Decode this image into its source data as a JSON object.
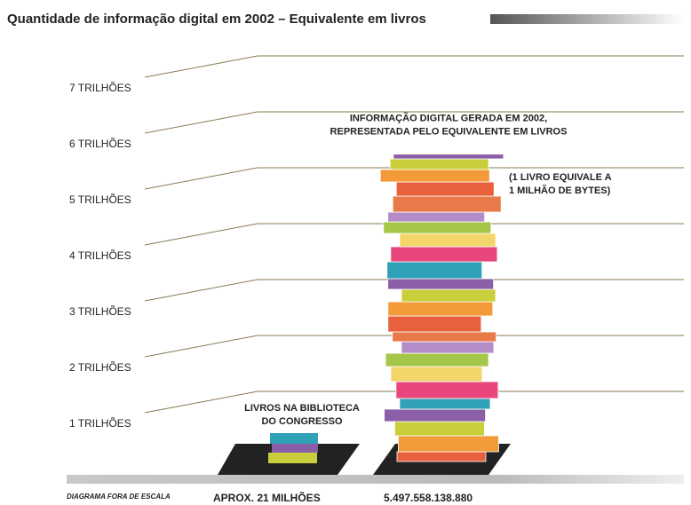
{
  "chart_data": {
    "type": "book-stack",
    "title": "Quantidade de informação digital em 2002 – Equivalente em livros",
    "categories": [
      [
        "LIVROS NA BIBLIOTECA",
        "DO CONGRESSO"
      ],
      [
        "INFORMAÇÃO DIGITAL GERADA EM 2002,",
        "REPRESENTADA PELO EQUIVALENTE EM LIVROS"
      ]
    ],
    "values": [
      21000000,
      5497558138880
    ],
    "value_labels": [
      "APROX. 21 MILHÕES",
      "5.497.558.138.880"
    ],
    "annotations": [
      [
        "(1 LIVRO EQUIVALE A",
        "1 MILHÃO DE BYTES)"
      ],
      "DIAGRAMA FORA DE ESCALA"
    ],
    "ylim": [
      0,
      7500000000000
    ],
    "yticks": [
      {
        "value": 1000000000000,
        "label": "1 TRILHÕES"
      },
      {
        "value": 2000000000000,
        "label": "2 TRILHÕES"
      },
      {
        "value": 3000000000000,
        "label": "3 TRILHÕES"
      },
      {
        "value": 4000000000000,
        "label": "4 TRILHÕES"
      },
      {
        "value": 5000000000000,
        "label": "5 TRILHÕES"
      },
      {
        "value": 6000000000000,
        "label": "6 TRILHÕES"
      },
      {
        "value": 7000000000000,
        "label": "7 TRILHÕES"
      }
    ],
    "grid": true,
    "colors": [
      "#e8603c",
      "#f29b38",
      "#c8cf3a",
      "#8b5fa8",
      "#2fa2b8",
      "#e8467c",
      "#f4d56a",
      "#a6c64a",
      "#b48cc8",
      "#e87a4a"
    ]
  }
}
